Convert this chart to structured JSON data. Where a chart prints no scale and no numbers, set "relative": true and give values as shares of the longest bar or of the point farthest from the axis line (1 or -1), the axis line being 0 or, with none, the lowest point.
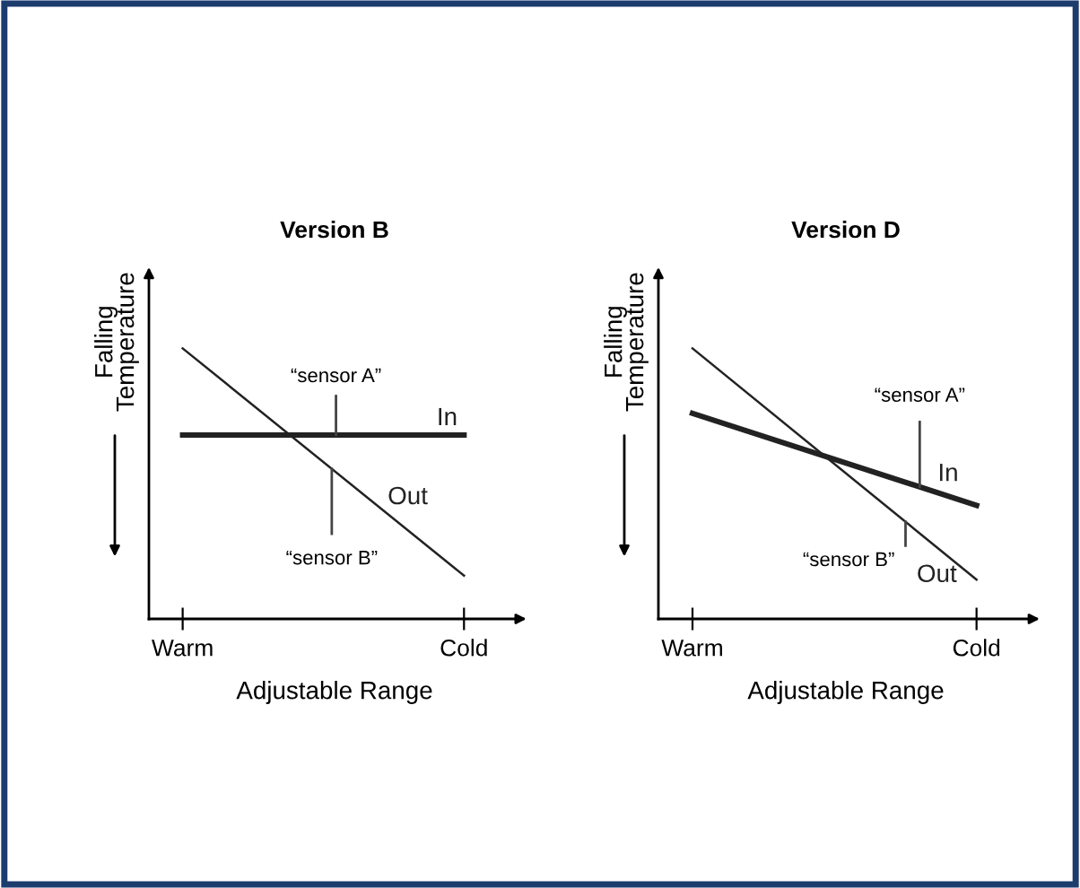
{
  "chart_data": [
    {
      "type": "line",
      "title": "Version B",
      "xlabel": "Adjustable Range",
      "ylabel": "Falling\nTemperature",
      "categories": [
        "Warm",
        "Cold"
      ],
      "relative": true,
      "tick_labels": "x",
      "grid": false,
      "legend": false,
      "series": [
        {
          "name": "In",
          "color": "#222222",
          "values": [
            0.68,
            0.68
          ]
        },
        {
          "name": "Out",
          "color": "#222222",
          "values": [
            1,
            0.16
          ]
        }
      ],
      "annotations": [
        "“sensor A”",
        "“sensor B”"
      ]
    },
    {
      "type": "line",
      "title": "Version D",
      "xlabel": "Adjustable Range",
      "ylabel": "Falling\nTemperature",
      "categories": [
        "Warm",
        "Cold"
      ],
      "relative": true,
      "tick_labels": "x",
      "grid": false,
      "legend": false,
      "series": [
        {
          "name": "In",
          "color": "#222222",
          "values": [
            0.76,
            0.42
          ]
        },
        {
          "name": "Out",
          "color": "#222222",
          "values": [
            1,
            0.145
          ]
        }
      ],
      "annotations": [
        "“sensor A”",
        "“sensor B”"
      ]
    }
  ]
}
